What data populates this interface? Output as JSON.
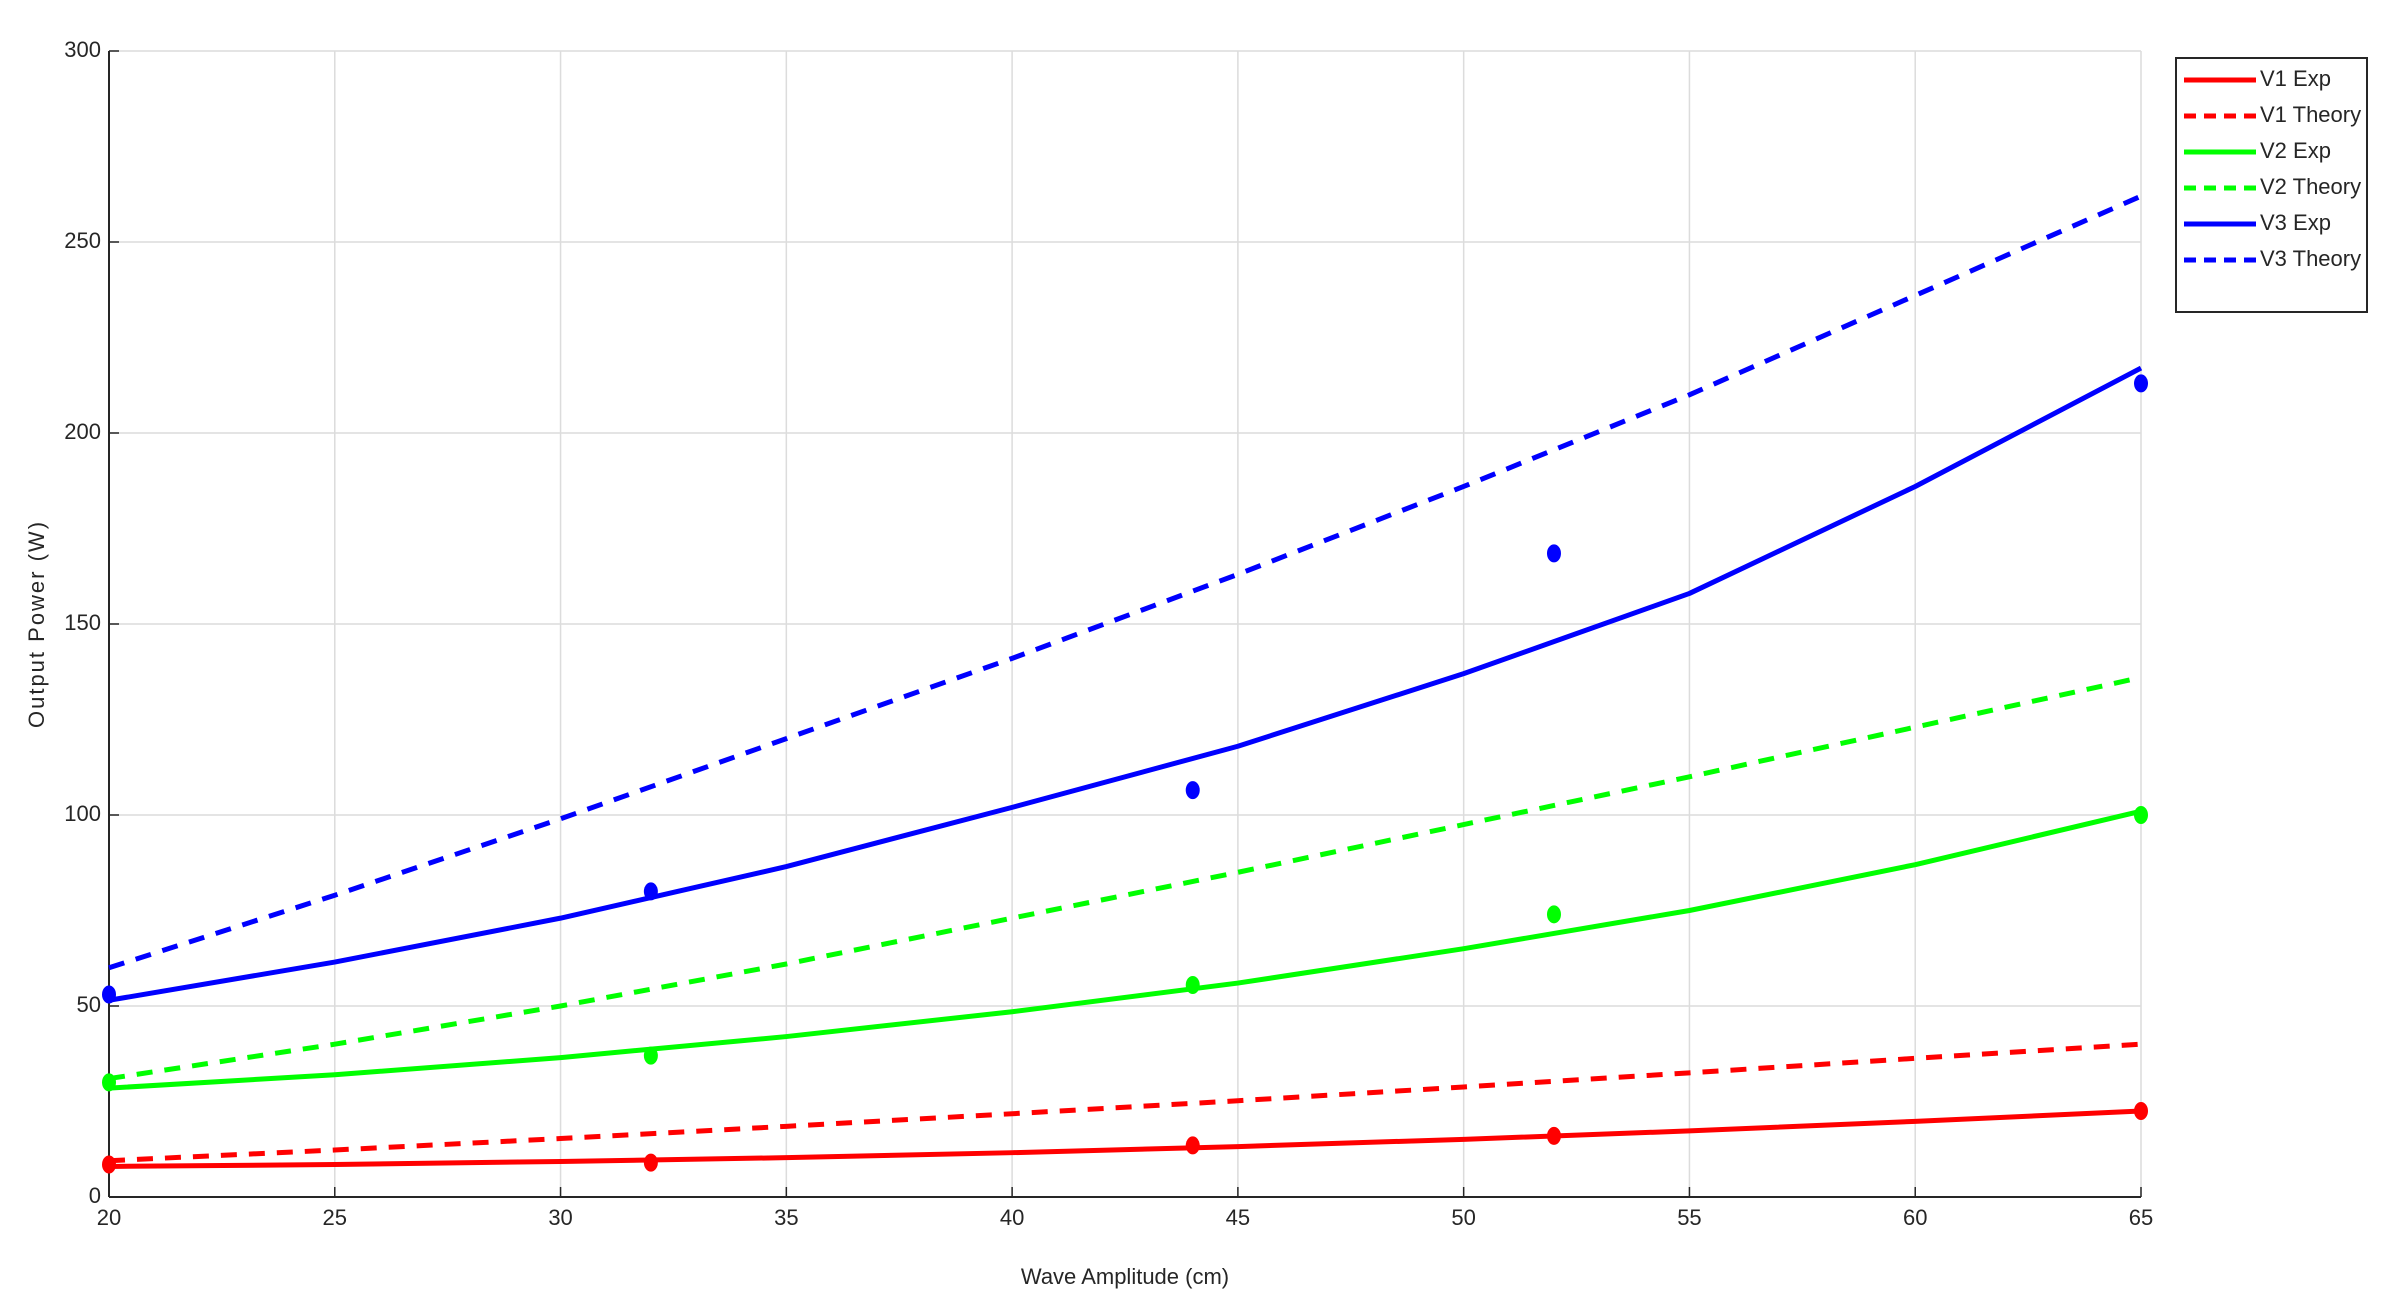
{
  "chart_data": {
    "type": "line",
    "xlabel": "Wave Amplitude (cm)",
    "ylabel": "Output Power (W)",
    "x": [
      20,
      25,
      30,
      35,
      40,
      45,
      50,
      55,
      60,
      65
    ],
    "series": [
      {
        "name": "V1 Exp",
        "color": "#ff0000",
        "dash": false,
        "values": [
          8,
          8.5,
          9.3,
          10.3,
          11.6,
          13.2,
          15.1,
          17.3,
          19.8,
          22.5
        ]
      },
      {
        "name": "V1 Theory",
        "color": "#ff0000",
        "dash": true,
        "values": [
          9.5,
          12.3,
          15.3,
          18.5,
          21.8,
          25.2,
          28.8,
          32.5,
          36.3,
          40
        ]
      },
      {
        "name": "V2 Exp",
        "color": "#00ff00",
        "dash": false,
        "values": [
          28.5,
          32,
          36.5,
          42,
          48.5,
          56,
          65,
          75,
          87,
          101
        ]
      },
      {
        "name": "V2 Theory",
        "color": "#00ff00",
        "dash": true,
        "values": [
          31,
          40,
          50,
          61,
          73,
          85,
          97.5,
          110,
          123,
          136
        ]
      },
      {
        "name": "V3 Exp",
        "color": "#0000ff",
        "dash": false,
        "values": [
          51.5,
          61.5,
          73,
          86.5,
          102,
          118,
          137,
          158,
          186,
          217
        ]
      },
      {
        "name": "V3 Theory",
        "color": "#0000ff",
        "dash": true,
        "values": [
          60,
          79,
          99,
          120,
          141,
          163,
          186,
          210,
          236,
          262
        ]
      }
    ],
    "points": [
      {
        "color": "#ff0000",
        "x": [
          20,
          32,
          44,
          52,
          65
        ],
        "values": [
          8.5,
          9,
          13.5,
          16,
          22.5
        ]
      },
      {
        "color": "#00ff00",
        "x": [
          20,
          32,
          44,
          52,
          65
        ],
        "values": [
          30,
          37,
          55.5,
          74,
          100
        ]
      },
      {
        "color": "#0000ff",
        "x": [
          20,
          32,
          44,
          52,
          65
        ],
        "values": [
          53,
          80,
          106.5,
          168.5,
          213
        ]
      }
    ],
    "xlim": [
      20,
      65
    ],
    "ylim": [
      0,
      300
    ],
    "xticks": [
      20,
      25,
      30,
      35,
      40,
      45,
      50,
      55,
      60,
      65
    ],
    "yticks": [
      0,
      50,
      100,
      150,
      200,
      250,
      300
    ],
    "grid": true,
    "legend": "outside-top-right"
  }
}
